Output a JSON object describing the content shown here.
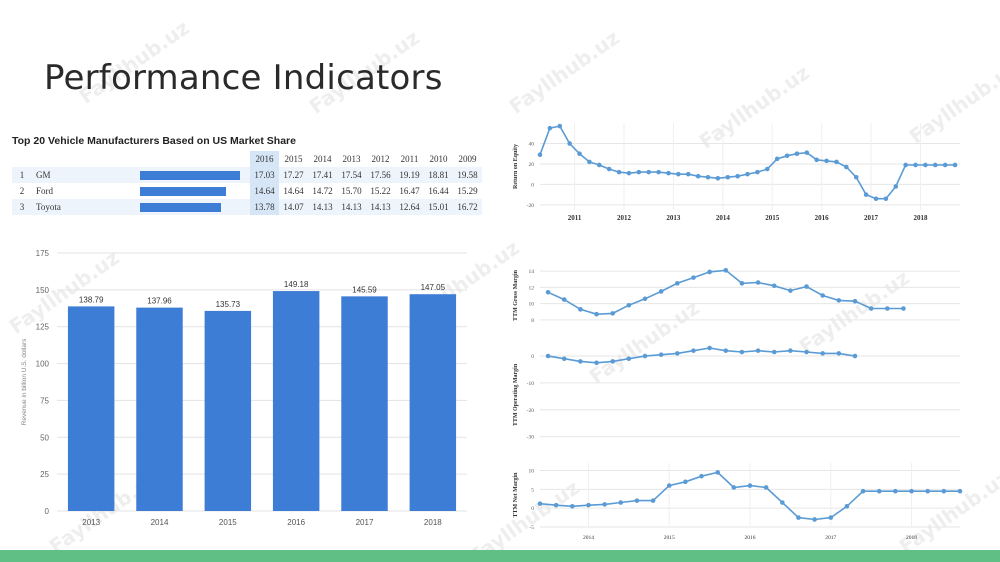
{
  "slide": {
    "title": "Performance Indicators",
    "watermark": "Fayllhub.uz",
    "accent_color": "#5fbf84"
  },
  "market_share_table": {
    "title": "Top 20 Vehicle Manufacturers Based on US Market Share",
    "years": [
      "2016",
      "2015",
      "2014",
      "2013",
      "2012",
      "2011",
      "2010",
      "2009"
    ],
    "highlight_year": "2016",
    "rows": [
      {
        "rank": "1",
        "name": "GM",
        "values": [
          "17.03",
          "17.27",
          "17.41",
          "17.54",
          "17.56",
          "19.19",
          "18.81",
          "19.58"
        ]
      },
      {
        "rank": "2",
        "name": "Ford",
        "values": [
          "14.64",
          "14.64",
          "14.72",
          "15.70",
          "15.22",
          "16.47",
          "16.44",
          "15.29"
        ]
      },
      {
        "rank": "3",
        "name": "Toyota",
        "values": [
          "13.78",
          "14.07",
          "14.13",
          "14.13",
          "14.13",
          "12.64",
          "15.01",
          "16.72"
        ]
      }
    ]
  },
  "chart_data": [
    {
      "id": "revenue",
      "type": "bar",
      "categories": [
        "2013",
        "2014",
        "2015",
        "2016",
        "2017",
        "2018"
      ],
      "values": [
        138.79,
        137.96,
        135.73,
        149.18,
        145.59,
        147.05
      ],
      "value_labels": [
        "138.79",
        "137.96",
        "135.73",
        "149.18",
        "145.59",
        "147.05"
      ],
      "ylabel": "Revenue in billion U.S. dollars",
      "ylim": [
        0,
        175
      ],
      "yticks": [
        0,
        25,
        50,
        75,
        100,
        125,
        150,
        175
      ],
      "bar_color": "#3d7dd6",
      "grid": true
    },
    {
      "id": "roe",
      "type": "line",
      "ylabel": "Return on Equity",
      "ylim": [
        -25,
        60
      ],
      "yticks": [
        -20,
        0,
        20,
        40
      ],
      "xlim": [
        2010.3,
        2018.8
      ],
      "xticks": [
        2011,
        2012,
        2013,
        2014,
        2015,
        2016,
        2017,
        2018
      ],
      "x": [
        2010.3,
        2010.5,
        2010.7,
        2010.9,
        2011.1,
        2011.3,
        2011.5,
        2011.7,
        2011.9,
        2012.1,
        2012.3,
        2012.5,
        2012.7,
        2012.9,
        2013.1,
        2013.3,
        2013.5,
        2013.7,
        2013.9,
        2014.1,
        2014.3,
        2014.5,
        2014.7,
        2014.9,
        2015.1,
        2015.3,
        2015.5,
        2015.7,
        2015.9,
        2016.1,
        2016.3,
        2016.5,
        2016.7,
        2016.9,
        2017.1,
        2017.3,
        2017.5,
        2017.7,
        2017.9,
        2018.1,
        2018.3,
        2018.5,
        2018.7
      ],
      "y": [
        29,
        55,
        57,
        40,
        30,
        22,
        19,
        15,
        12,
        11,
        12,
        12,
        12,
        11,
        10,
        10,
        8,
        7,
        6,
        7,
        8,
        10,
        12,
        15,
        25,
        28,
        30,
        31,
        24,
        23,
        22,
        17,
        7,
        -10,
        -14,
        -14,
        -2,
        19,
        19,
        19,
        19,
        19,
        19
      ],
      "line_color": "#5b9bd5",
      "grid": true
    },
    {
      "id": "gross",
      "type": "line",
      "ylabel": "TTM Gross Margin",
      "ylim": [
        7,
        15
      ],
      "yticks": [
        8,
        10,
        12,
        14
      ],
      "x": [
        2013.5,
        2013.7,
        2013.9,
        2014.1,
        2014.3,
        2014.5,
        2014.7,
        2014.9,
        2015.1,
        2015.3,
        2015.5,
        2015.7,
        2015.9,
        2016.1,
        2016.3,
        2016.5,
        2016.7,
        2016.9,
        2017.1,
        2017.3,
        2017.5,
        2017.7,
        2017.9
      ],
      "y": [
        11.4,
        10.5,
        9.3,
        8.7,
        8.8,
        9.8,
        10.6,
        11.5,
        12.5,
        13.2,
        13.9,
        14.1,
        12.5,
        12.6,
        12.2,
        11.6,
        12.1,
        11.0,
        10.4,
        10.3,
        9.4,
        9.4,
        9.4
      ],
      "line_color": "#5b9bd5",
      "grid": true
    },
    {
      "id": "operating",
      "type": "line",
      "ylabel": "TTM Operating Margin",
      "ylim": [
        -32,
        3
      ],
      "yticks": [
        0,
        -10,
        -20,
        -30
      ],
      "x": [
        2013.5,
        2013.7,
        2013.9,
        2014.1,
        2014.3,
        2014.5,
        2014.7,
        2014.9,
        2015.1,
        2015.3,
        2015.5,
        2015.7,
        2015.9,
        2016.1,
        2016.3,
        2016.5,
        2016.7,
        2016.9,
        2017.1,
        2017.3
      ],
      "y": [
        0,
        -1,
        -2,
        -2.5,
        -2,
        -1,
        0,
        0.5,
        1,
        2,
        3,
        2,
        1.5,
        2,
        1.5,
        2,
        1.5,
        1,
        1,
        0
      ],
      "line_color": "#5b9bd5",
      "grid": true
    },
    {
      "id": "net",
      "type": "line",
      "ylabel": "TTM Net Margin",
      "ylim": [
        -5,
        12
      ],
      "yticks": [
        10,
        5,
        0,
        -5
      ],
      "xlim": [
        2013.4,
        2018.6
      ],
      "xticks": [
        2014,
        2015,
        2016,
        2017,
        2018
      ],
      "x": [
        2013.4,
        2013.6,
        2013.8,
        2014.0,
        2014.2,
        2014.4,
        2014.6,
        2014.8,
        2015.0,
        2015.2,
        2015.4,
        2015.6,
        2015.8,
        2016.0,
        2016.2,
        2016.4,
        2016.6,
        2016.8,
        2017.0,
        2017.2,
        2017.4,
        2017.6,
        2017.8,
        2018.0,
        2018.2,
        2018.4,
        2018.6
      ],
      "y": [
        1.2,
        0.8,
        0.5,
        0.8,
        1.0,
        1.5,
        2.0,
        2.0,
        6.0,
        7.0,
        8.5,
        9.5,
        5.5,
        6.0,
        5.5,
        1.5,
        -2.5,
        -3.0,
        -2.5,
        0.5,
        4.5,
        4.5,
        4.5,
        4.5,
        4.5,
        4.5,
        4.5
      ],
      "line_color": "#5b9bd5",
      "grid": true
    }
  ]
}
